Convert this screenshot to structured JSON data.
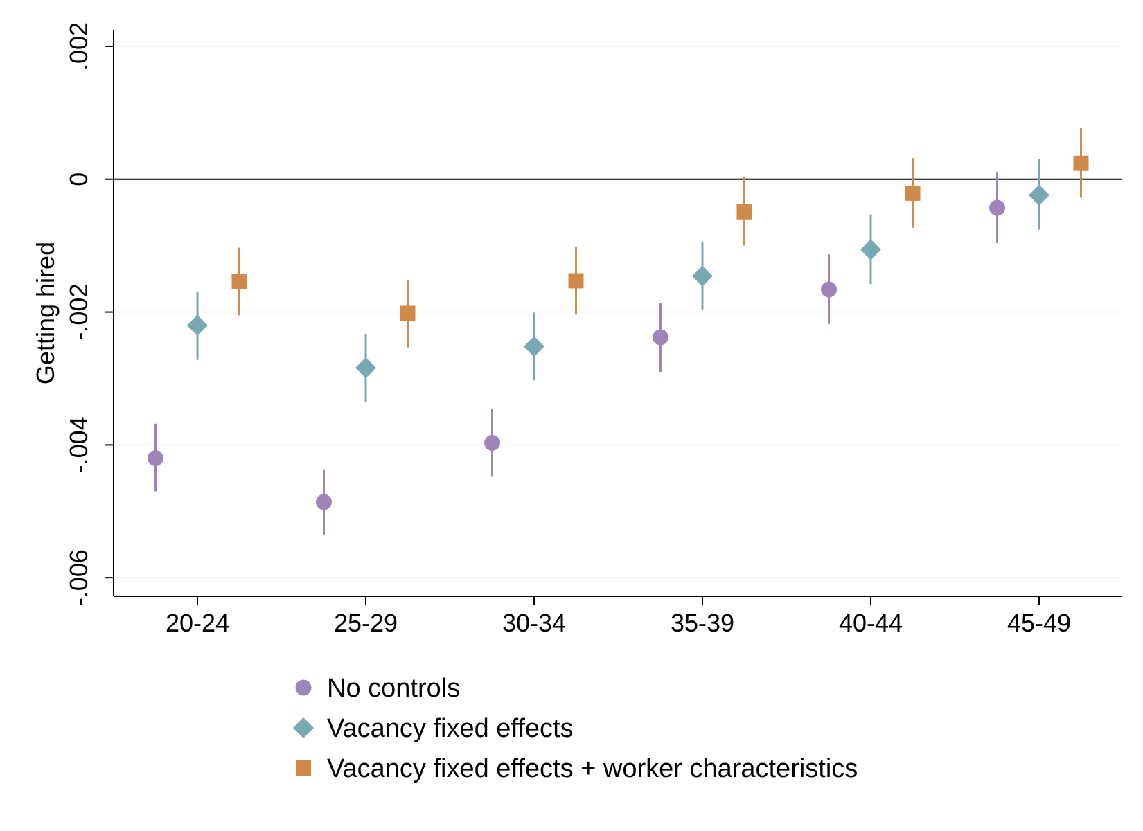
{
  "chart_data": {
    "type": "scatter",
    "ylabel": "Getting hired",
    "categories": [
      "20-24",
      "25-29",
      "30-34",
      "35-39",
      "40-44",
      "45-49"
    ],
    "ylim": [
      -0.00628,
      0.00225
    ],
    "yticks": [
      {
        "value": 0.002,
        "label": ".002"
      },
      {
        "value": 0,
        "label": "0"
      },
      {
        "value": -0.002,
        "label": "-.002"
      },
      {
        "value": -0.004,
        "label": "-.004"
      },
      {
        "value": -0.006,
        "label": "-.006"
      }
    ],
    "zero_line": true,
    "grid": true,
    "legend_position": "bottom-center",
    "series": [
      {
        "name": "No controls",
        "marker": "circle",
        "color": "#9F83BB",
        "offset": -0.5,
        "values": [
          -0.0042,
          -0.00486,
          -0.00397,
          -0.00238,
          -0.00166,
          -0.00043
        ],
        "ci_low": [
          -0.0047,
          -0.00535,
          -0.00448,
          -0.0029,
          -0.00218,
          -0.00096
        ],
        "ci_high": [
          -0.00368,
          -0.00437,
          -0.00346,
          -0.00186,
          -0.00113,
          0.0001
        ]
      },
      {
        "name": "Vacancy fixed effects",
        "marker": "diamond",
        "color": "#78A8B2",
        "offset": 0,
        "values": [
          -0.0022,
          -0.00284,
          -0.00252,
          -0.00146,
          -0.00106,
          -0.00024
        ],
        "ci_low": [
          -0.00272,
          -0.00335,
          -0.00303,
          -0.00197,
          -0.00158,
          -0.00076
        ],
        "ci_high": [
          -0.00169,
          -0.00233,
          -0.00201,
          -0.00094,
          -0.00053,
          0.0003
        ]
      },
      {
        "name": "Vacancy fixed effects + worker characteristics",
        "marker": "square",
        "color": "#D08A4A",
        "offset": 0.5,
        "values": [
          -0.00154,
          -0.00202,
          -0.00153,
          -0.00049,
          -0.00021,
          0.00024
        ],
        "ci_low": [
          -0.00205,
          -0.00253,
          -0.00204,
          -0.001,
          -0.00073,
          -0.00028
        ],
        "ci_high": [
          -0.00103,
          -0.00152,
          -0.00102,
          4e-05,
          0.00032,
          0.00077
        ]
      }
    ]
  }
}
